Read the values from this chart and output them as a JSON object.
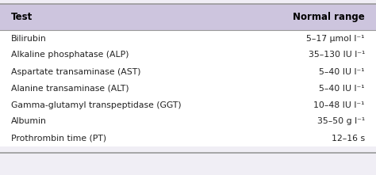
{
  "header_bg": "#cdc5de",
  "table_bg": "#ffffff",
  "outer_bg": "#f0eef5",
  "border_color": "#999999",
  "header_text_color": "#000000",
  "body_text_color": "#222222",
  "col1_header": "Test",
  "col2_header": "Normal range",
  "rows": [
    [
      "Bilirubin",
      "5–17 μmol l⁻¹"
    ],
    [
      "Alkaline phosphatase (ALP)",
      "35–130 IU l⁻¹"
    ],
    [
      "Aspartate transaminase (AST)",
      "5–40 IU l⁻¹"
    ],
    [
      "Alanine transaminase (ALT)",
      "5–40 IU l⁻¹"
    ],
    [
      "Gamma-glutamyl transpeptidase (GGT)",
      "10–48 IU l⁻¹"
    ],
    [
      "Albumin",
      "35–50 g l⁻¹"
    ],
    [
      "Prothrombin time (PT)",
      "12–16 s"
    ]
  ],
  "figsize": [
    4.74,
    2.21
  ],
  "dpi": 100,
  "font_size": 7.8,
  "header_font_size": 8.5
}
